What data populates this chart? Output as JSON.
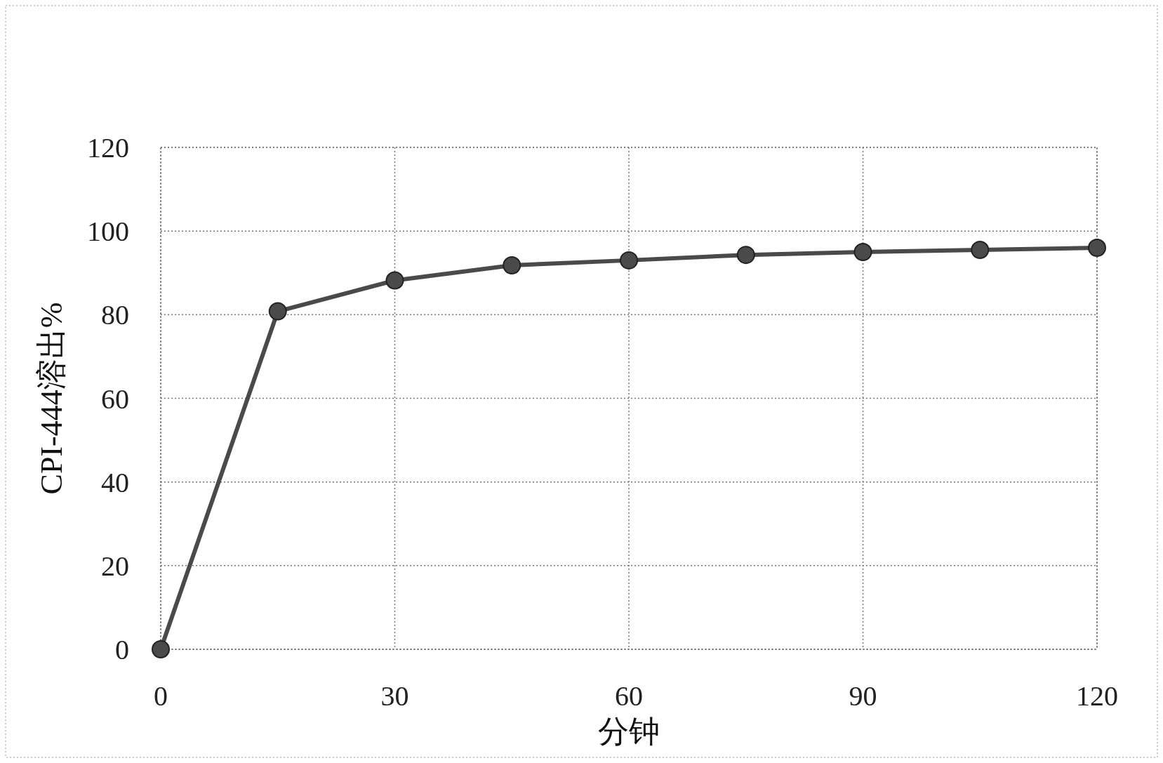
{
  "chart_data": {
    "type": "line",
    "xlabel": "分钟",
    "ylabel": "CPI-444溶出%",
    "x": [
      0,
      15,
      30,
      45,
      60,
      75,
      90,
      105,
      120
    ],
    "series": [
      {
        "color": "#4a4a4a",
        "values": [
          0,
          80.8,
          88.2,
          91.8,
          93.0,
          94.3,
          95.0,
          95.5,
          96.0
        ]
      }
    ],
    "xlim": [
      0,
      120
    ],
    "xticks": [
      0,
      30,
      60,
      90,
      120
    ],
    "ylim": [
      0,
      120
    ],
    "yticks": [
      0,
      20,
      40,
      60,
      80,
      100,
      120
    ],
    "grid": true,
    "marker": "circle"
  }
}
